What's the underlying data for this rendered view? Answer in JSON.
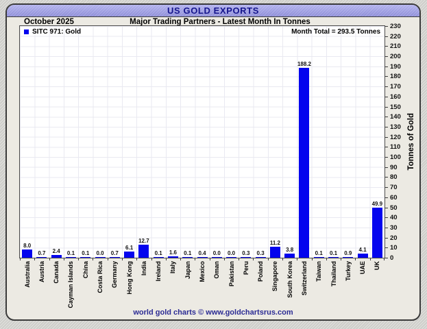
{
  "header": {
    "title": "US GOLD EXPORTS",
    "period": "October 2025",
    "subtitle": "Major Trading Partners - Latest Month In Tonnes"
  },
  "legend": {
    "label": "SITC 971: Gold"
  },
  "annotations": {
    "month_total": "Month Total = 293.5 Tonnes"
  },
  "footer": {
    "credit": "world gold charts © www.goldchartsrus.com"
  },
  "colors": {
    "bar": "#0404ee",
    "titlebar": "#9c9ce2",
    "title_text": "#15158c",
    "footer_text": "#2b2b94",
    "plot_background": "#ffffff",
    "card_background": "#eceae3"
  },
  "chart_data": {
    "type": "bar",
    "title": "US Gold Exports - Major Trading Partners - Latest Month In Tonnes (October 2025)",
    "series_name": "SITC 971: Gold",
    "categories": [
      "Australia",
      "Austria",
      "Canada",
      "Cayman Islands",
      "China",
      "Costa Rica",
      "Germany",
      "Hong Kong",
      "India",
      "Ireland",
      "Italy",
      "Japan",
      "Mexico",
      "Oman",
      "Pakistan",
      "Peru",
      "Poland",
      "Singapore",
      "South Korea",
      "Switzerland",
      "Taiwan",
      "Thailand",
      "Turkey",
      "UAE",
      "UK"
    ],
    "values": [
      8.0,
      0.7,
      2.4,
      0.1,
      0.1,
      0.0,
      0.7,
      6.1,
      12.7,
      0.1,
      1.6,
      0.1,
      0.4,
      0.0,
      0.0,
      0.3,
      0.3,
      11.2,
      3.8,
      188.2,
      0.1,
      0.1,
      0.9,
      4.1,
      49.9
    ],
    "xlabel": "",
    "ylabel": "Tonnes of Gold",
    "ylim": [
      0,
      230
    ],
    "ytick_step": 10,
    "grid": true,
    "legend_position": "top-left",
    "value_labels": true,
    "month_total": 293.5
  }
}
